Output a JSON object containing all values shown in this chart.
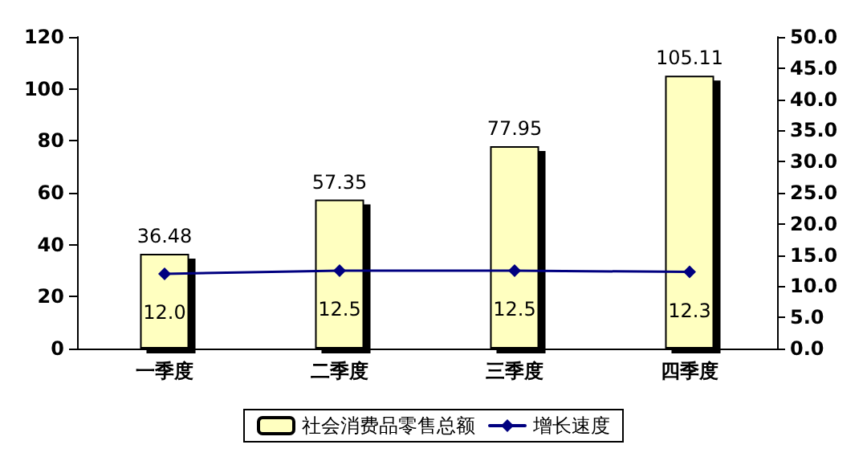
{
  "chart_data": {
    "type": "bar",
    "categories": [
      "一季度",
      "二季度",
      "三季度",
      "四季度"
    ],
    "series": [
      {
        "name": "社会消费品零售总额",
        "color": "#ffffc0",
        "values": [
          36.48,
          57.35,
          77.95,
          105.11
        ]
      },
      {
        "name": "增长速度",
        "type": "line",
        "axis": "y2",
        "color": "#000080",
        "values": [
          12.0,
          12.5,
          12.5,
          12.3
        ],
        "value_labels": [
          "12.0",
          "12.5",
          "12.5",
          "12.3"
        ]
      }
    ],
    "data_labels": true,
    "ylim": [
      0,
      120
    ],
    "yticks": [
      0,
      20,
      40,
      60,
      80,
      100,
      120
    ],
    "y2lim": [
      0,
      50
    ],
    "y2ticks": [
      {
        "value": 0,
        "label": "0.0"
      },
      {
        "value": 5,
        "label": "5.0"
      },
      {
        "value": 10,
        "label": "10.0"
      },
      {
        "value": 15,
        "label": "15.0"
      },
      {
        "value": 20,
        "label": "20.0"
      },
      {
        "value": 25,
        "label": "25.0"
      },
      {
        "value": 30,
        "label": "30.0"
      },
      {
        "value": 35,
        "label": "35.0"
      },
      {
        "value": 40,
        "label": "40.0"
      },
      {
        "value": 45,
        "label": "45.0"
      },
      {
        "value": 50,
        "label": "50.0"
      }
    ],
    "grid": false,
    "legend": "bottom",
    "marker": "diamond",
    "line_style": "solid"
  }
}
